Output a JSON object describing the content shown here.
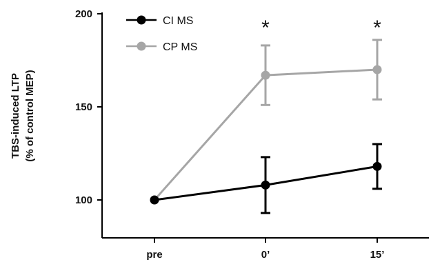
{
  "chart_data": {
    "type": "line",
    "categories": [
      "pre",
      "0’",
      "15’"
    ],
    "ylabel_lines": [
      "TBS-induced LTP",
      "(% of control MEP)"
    ],
    "ylim": [
      100,
      200
    ],
    "yticks": [
      100,
      150,
      200
    ],
    "series": [
      {
        "name": "CI MS",
        "color": "#000000",
        "values": [
          100,
          108,
          118
        ],
        "errors": [
          0,
          15,
          12
        ]
      },
      {
        "name": "CP MS",
        "color": "#a6a6a6",
        "values": [
          100,
          167,
          170
        ],
        "errors": [
          0,
          16,
          16
        ]
      }
    ],
    "significance": [
      {
        "category_index": 1,
        "label": "*"
      },
      {
        "category_index": 2,
        "label": "*"
      }
    ],
    "legend_position": "top-left",
    "grid": false
  }
}
